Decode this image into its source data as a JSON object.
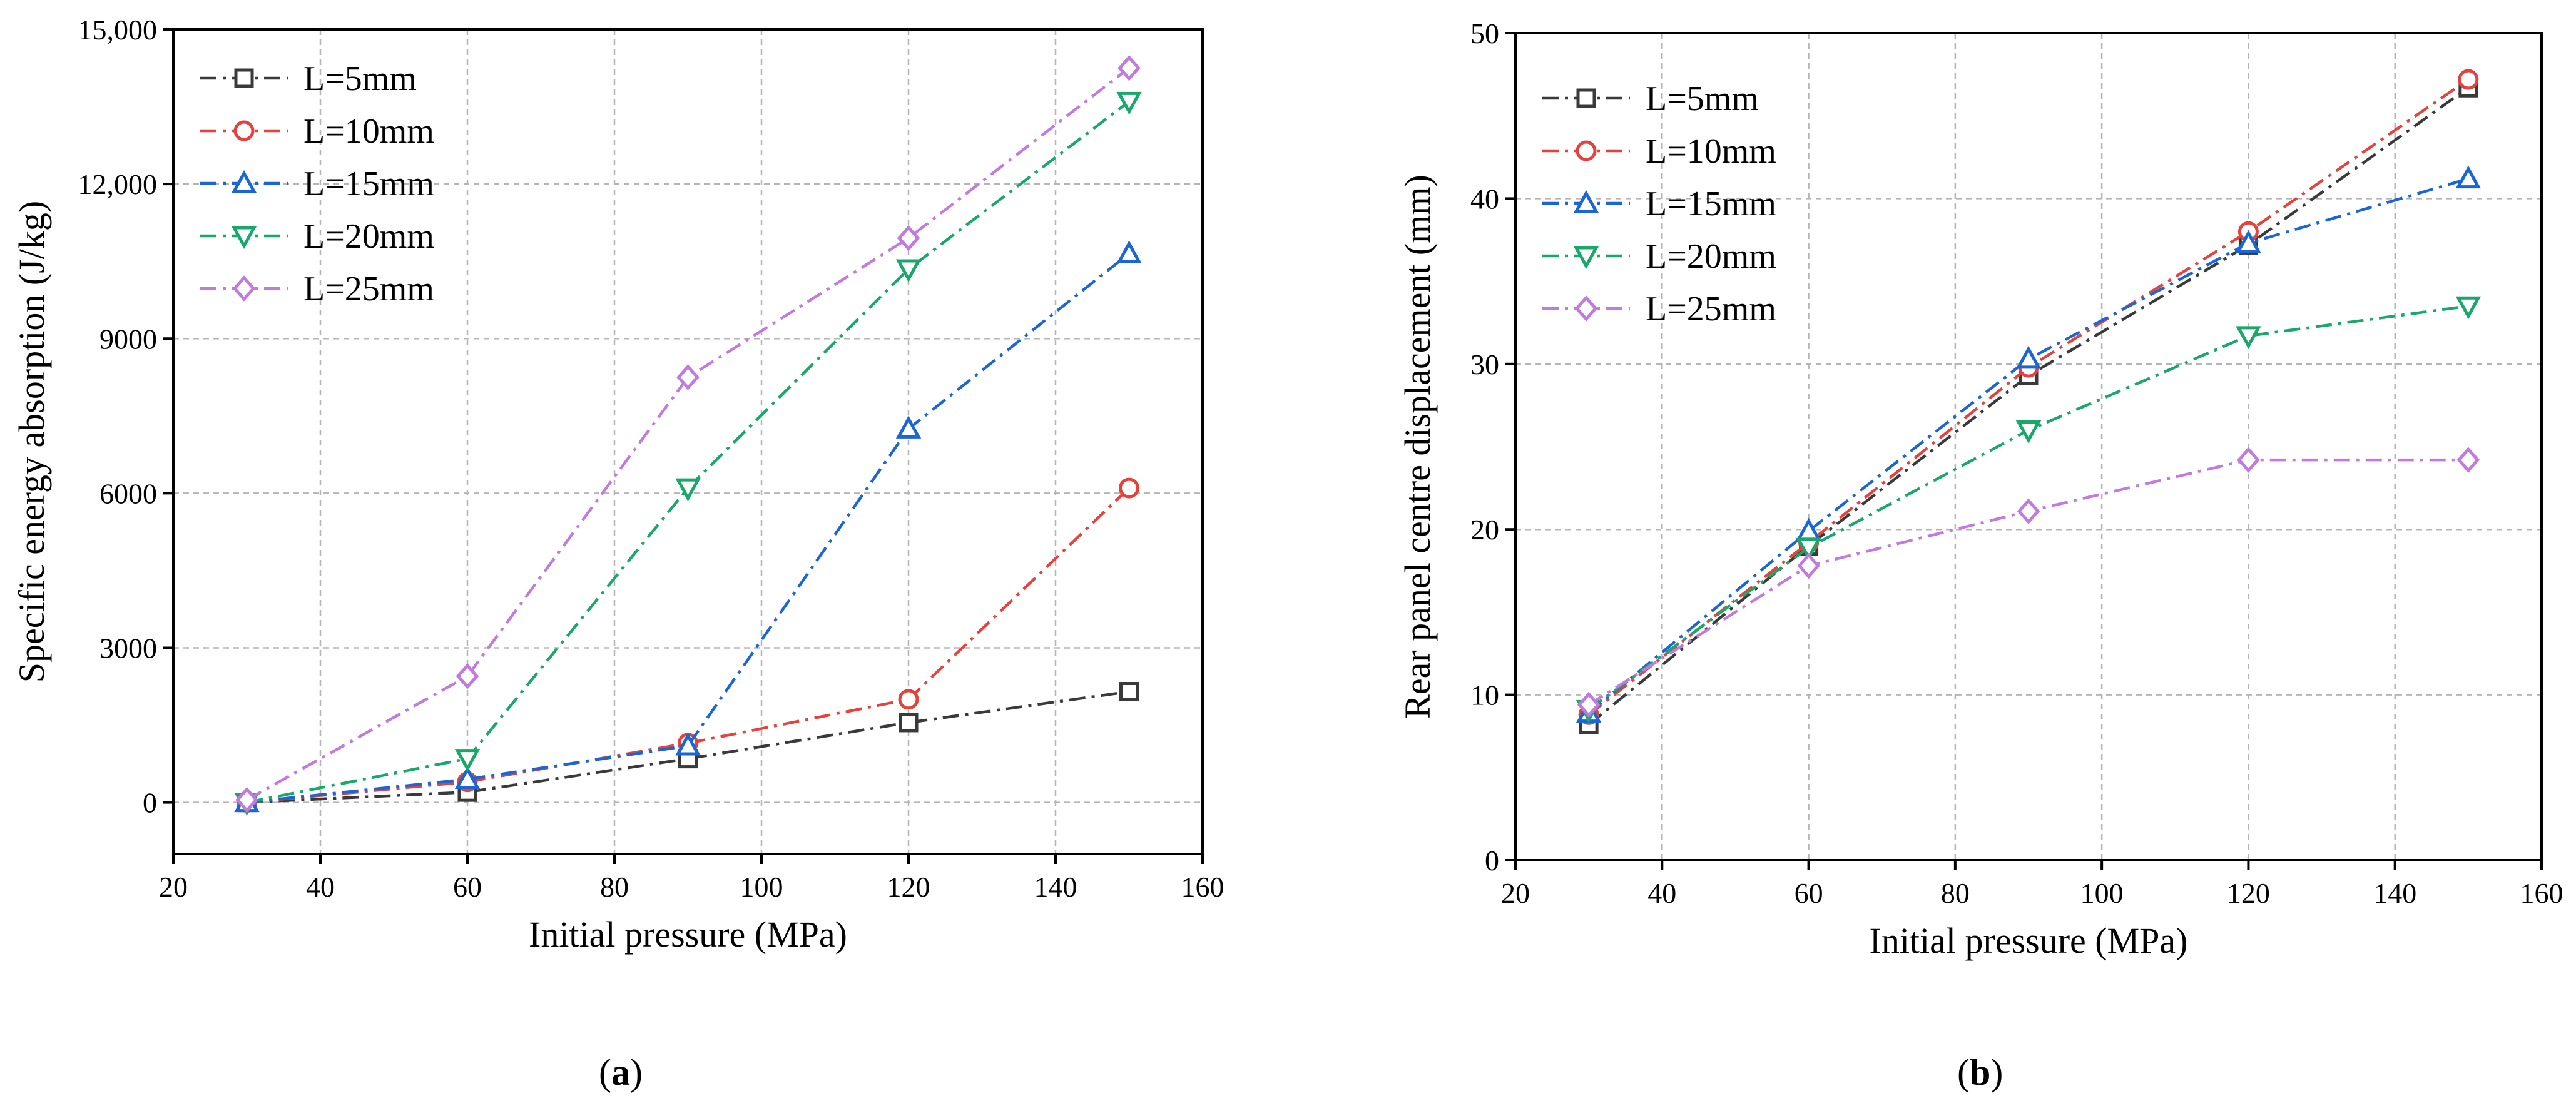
{
  "chart_data": [
    {
      "type": "line",
      "caption": "a",
      "xlabel": "Initial pressure (MPa)",
      "ylabel": "Specific energy absorption (J/kg)",
      "xlim": [
        20,
        160
      ],
      "ylim": [
        -1000,
        15000
      ],
      "xticks": [
        20,
        40,
        60,
        80,
        100,
        120,
        140,
        160
      ],
      "yticks": [
        0,
        3000,
        6000,
        9000,
        12000,
        15000
      ],
      "ytick_labels": [
        "0",
        "3000",
        "6000",
        "9000",
        "12,000",
        "15,000"
      ],
      "grid": true,
      "legend_position": "top-left",
      "x": [
        30,
        60,
        90,
        120,
        150
      ],
      "series": [
        {
          "name": "L=5mm",
          "color": "#3a3a3a",
          "marker": "square",
          "dash": "long-dash-dot",
          "values": [
            0,
            200,
            850,
            1550,
            2150
          ]
        },
        {
          "name": "L=10mm",
          "color": "#e8413b",
          "marker": "circle",
          "dash": "long-dash-dot",
          "values": [
            0,
            400,
            1150,
            2000,
            6100
          ]
        },
        {
          "name": "L=15mm",
          "color": "#1a66d6",
          "marker": "triangle-up",
          "dash": "long-dash-dot",
          "values": [
            0,
            450,
            1100,
            7250,
            10650
          ]
        },
        {
          "name": "L=20mm",
          "color": "#17a86a",
          "marker": "triangle-down",
          "dash": "long-dash-dot",
          "values": [
            0,
            850,
            6100,
            10350,
            13600
          ]
        },
        {
          "name": "L=25mm",
          "color": "#c27ae0",
          "marker": "diamond",
          "dash": "long-dash-dot",
          "values": [
            50,
            2450,
            8250,
            10950,
            14250
          ]
        }
      ]
    },
    {
      "type": "line",
      "caption": "b",
      "xlabel": "Initial pressure (MPa)",
      "ylabel": "Rear panel centre displacement (mm)",
      "xlim": [
        20,
        160
      ],
      "ylim": [
        0,
        50
      ],
      "xticks": [
        20,
        40,
        60,
        80,
        100,
        120,
        140,
        160
      ],
      "yticks": [
        0,
        10,
        20,
        30,
        40,
        50
      ],
      "ytick_labels": [
        "0",
        "10",
        "20",
        "30",
        "40",
        "50"
      ],
      "grid": true,
      "legend_position": "top-left",
      "x": [
        30,
        60,
        90,
        120,
        150
      ],
      "series": [
        {
          "name": "L=5mm",
          "color": "#3a3a3a",
          "marker": "square",
          "dash": "long-dash-dot",
          "values": [
            8.2,
            19.0,
            29.3,
            37.2,
            46.7
          ]
        },
        {
          "name": "L=10mm",
          "color": "#e8413b",
          "marker": "circle",
          "dash": "long-dash-dot",
          "values": [
            8.8,
            19.2,
            29.8,
            38.0,
            47.2
          ]
        },
        {
          "name": "L=15mm",
          "color": "#1a66d6",
          "marker": "triangle-up",
          "dash": "long-dash-dot",
          "values": [
            8.9,
            19.9,
            30.3,
            37.3,
            41.2
          ]
        },
        {
          "name": "L=20mm",
          "color": "#17a86a",
          "marker": "triangle-down",
          "dash": "long-dash-dot",
          "values": [
            9.1,
            18.9,
            26.0,
            31.7,
            33.5
          ]
        },
        {
          "name": "L=25mm",
          "color": "#c27ae0",
          "marker": "diamond",
          "dash": "long-dash-dot",
          "values": [
            9.4,
            17.8,
            21.1,
            24.2,
            24.2
          ]
        }
      ]
    }
  ]
}
